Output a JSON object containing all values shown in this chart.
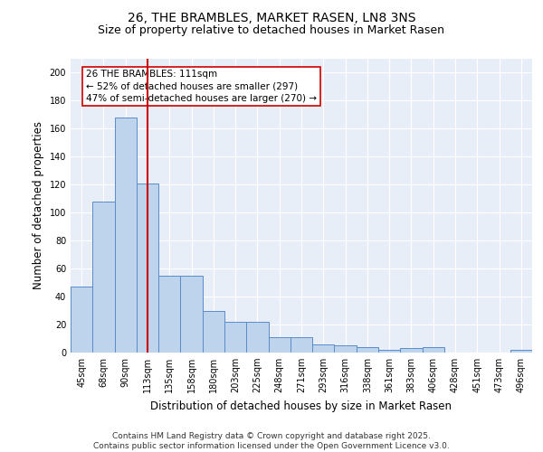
{
  "title": "26, THE BRAMBLES, MARKET RASEN, LN8 3NS",
  "subtitle": "Size of property relative to detached houses in Market Rasen",
  "xlabel": "Distribution of detached houses by size in Market Rasen",
  "ylabel": "Number of detached properties",
  "categories": [
    "45sqm",
    "68sqm",
    "90sqm",
    "113sqm",
    "135sqm",
    "158sqm",
    "180sqm",
    "203sqm",
    "225sqm",
    "248sqm",
    "271sqm",
    "293sqm",
    "316sqm",
    "338sqm",
    "361sqm",
    "383sqm",
    "406sqm",
    "428sqm",
    "451sqm",
    "473sqm",
    "496sqm"
  ],
  "values": [
    47,
    108,
    168,
    121,
    55,
    55,
    30,
    22,
    22,
    11,
    11,
    6,
    5,
    4,
    2,
    3,
    4,
    0,
    0,
    0,
    2
  ],
  "bar_color": "#bed3ec",
  "bar_edge_color": "#5b8cc8",
  "vline_x_index": 3,
  "vline_color": "#cc0000",
  "annotation_text": "26 THE BRAMBLES: 111sqm\n← 52% of detached houses are smaller (297)\n47% of semi-detached houses are larger (270) →",
  "annotation_box_color": "#ffffff",
  "annotation_box_edge": "#cc0000",
  "ylim": [
    0,
    210
  ],
  "yticks": [
    0,
    20,
    40,
    60,
    80,
    100,
    120,
    140,
    160,
    180,
    200
  ],
  "background_color": "#e8eef8",
  "footer": "Contains HM Land Registry data © Crown copyright and database right 2025.\nContains public sector information licensed under the Open Government Licence v3.0.",
  "title_fontsize": 10,
  "subtitle_fontsize": 9,
  "xlabel_fontsize": 8.5,
  "ylabel_fontsize": 8.5,
  "tick_fontsize": 7,
  "annotation_fontsize": 7.5,
  "footer_fontsize": 6.5
}
